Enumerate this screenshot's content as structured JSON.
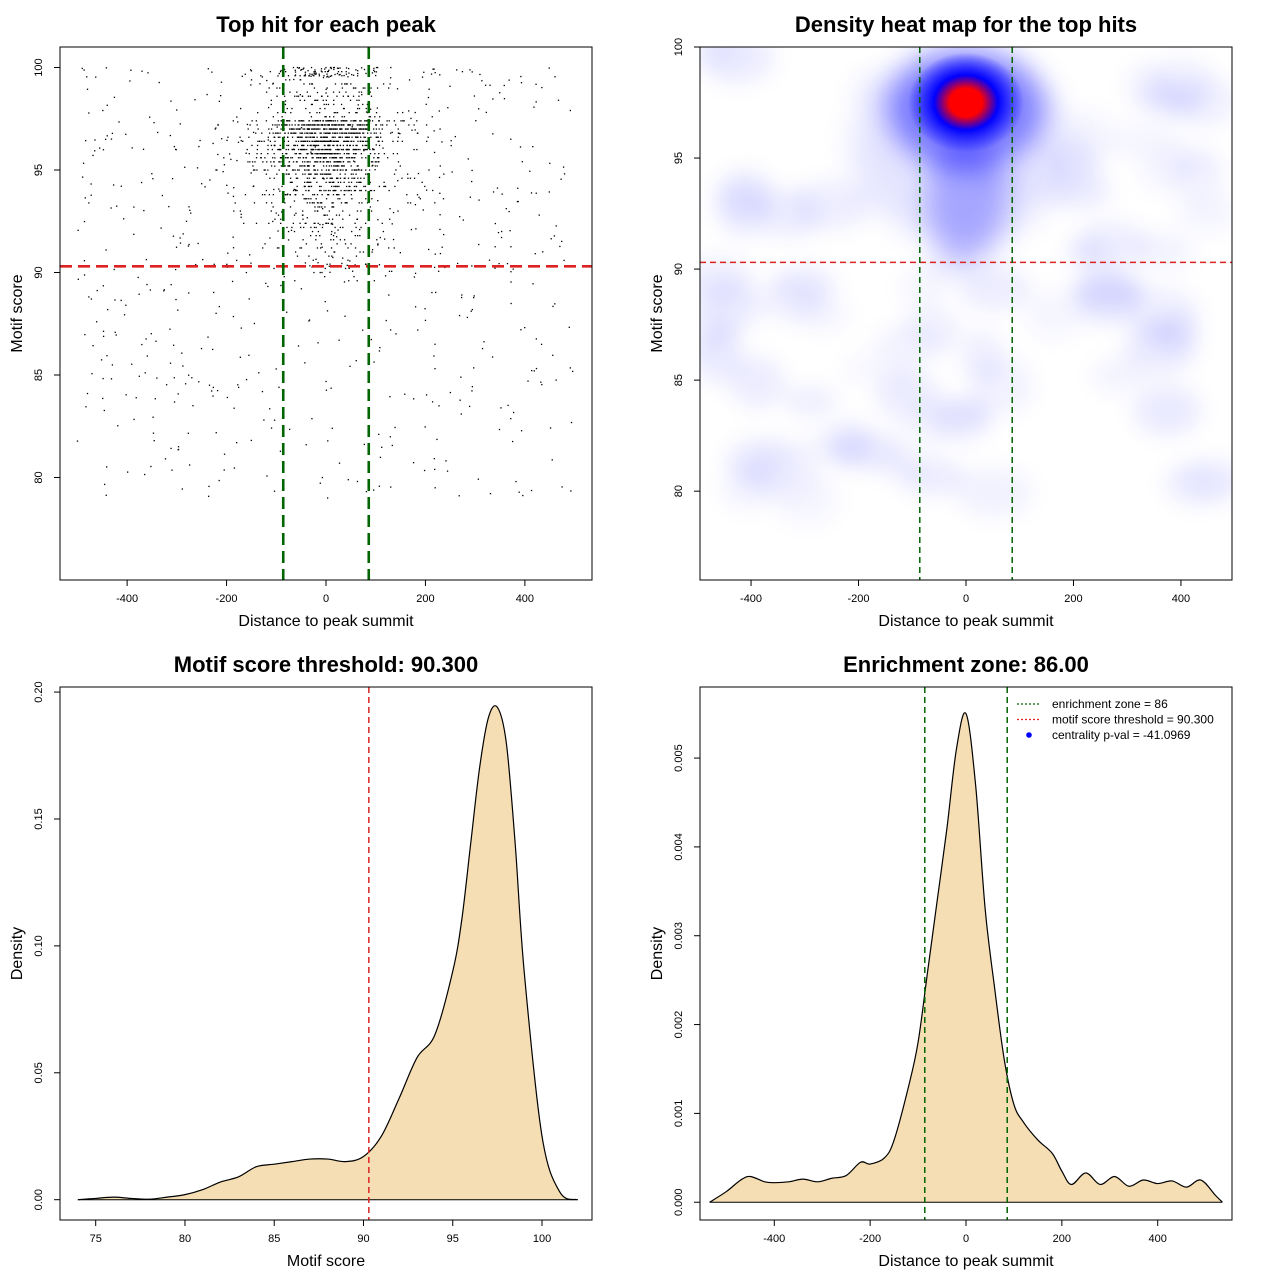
{
  "chart_data": [
    {
      "type": "scatter",
      "title": "Top hit for each peak",
      "xlabel": "Distance to peak summit",
      "ylabel": "Motif score",
      "xlim": [
        -535,
        535
      ],
      "ylim": [
        75.0,
        101.0
      ],
      "xticks": [
        -400,
        -200,
        0,
        200,
        400
      ],
      "yticks": [
        80,
        85,
        90,
        95,
        100
      ],
      "threshold_y": 90.3,
      "zone_x": [
        -86,
        86
      ],
      "colors": {
        "points": "#000000",
        "threshold": "#dd2222",
        "zone": "#006400"
      },
      "point_cloud": {
        "center": {
          "x": 0,
          "y": 97.5
        },
        "core_spread": {
          "x": 55,
          "y": 2.2
        },
        "background_x_range": [
          -500,
          500
        ],
        "background_y_range": [
          79,
          100
        ],
        "approx_points": 2200
      }
    },
    {
      "type": "heatmap",
      "title": "Density heat map for the top hits",
      "xlabel": "Distance to peak summit",
      "ylabel": "Motif score",
      "xlim": [
        -495,
        495
      ],
      "ylim": [
        76.0,
        100.0
      ],
      "xticks": [
        -400,
        -200,
        0,
        200,
        400
      ],
      "yticks": [
        80,
        85,
        90,
        95,
        100
      ],
      "threshold_y": 90.3,
      "zone_x": [
        -86,
        86
      ],
      "colors": {
        "low": "#ffffff",
        "mid": "#0000ff",
        "high": "#ff0000",
        "threshold": "#dd2222",
        "zone": "#006400"
      },
      "hotspot": {
        "x": 0,
        "y": 97.5
      }
    },
    {
      "type": "area",
      "title": "Motif score threshold: 90.300",
      "xlabel": "Motif score",
      "ylabel": "Density",
      "xlim": [
        73.0,
        102.8
      ],
      "ylim": [
        -0.008,
        0.202
      ],
      "xticks": [
        75,
        80,
        85,
        90,
        95,
        100
      ],
      "yticks": [
        0.0,
        0.05,
        0.1,
        0.15,
        0.2
      ],
      "ytick_labels": [
        "0.00",
        "0.05",
        "0.10",
        "0.15",
        "0.20"
      ],
      "threshold_x": 90.3,
      "colors": {
        "fill": "#f5deb3",
        "line": "#000000",
        "threshold": "#dd2222"
      },
      "x": [
        74,
        75,
        76,
        77,
        78,
        79,
        80,
        81,
        82,
        83,
        84,
        85,
        86,
        87,
        88,
        89,
        90,
        91,
        92,
        93,
        94,
        95,
        95.5,
        96,
        96.5,
        97,
        97.5,
        98,
        98.5,
        99,
        100,
        101,
        102
      ],
      "y": [
        0.0,
        0.0005,
        0.001,
        0.0005,
        0.0002,
        0.001,
        0.002,
        0.004,
        0.007,
        0.009,
        0.013,
        0.014,
        0.015,
        0.016,
        0.016,
        0.015,
        0.017,
        0.025,
        0.04,
        0.056,
        0.065,
        0.09,
        0.11,
        0.14,
        0.17,
        0.19,
        0.194,
        0.18,
        0.14,
        0.09,
        0.025,
        0.003,
        0.0
      ]
    },
    {
      "type": "area",
      "title": "Enrichment zone: 86.00",
      "xlabel": "Distance to peak summit",
      "ylabel": "Density",
      "xlim": [
        -555,
        555
      ],
      "ylim": [
        -0.0002,
        0.0058
      ],
      "xticks": [
        -400,
        -200,
        0,
        200,
        400
      ],
      "yticks": [
        0.0,
        0.001,
        0.002,
        0.003,
        0.004,
        0.005
      ],
      "ytick_labels": [
        "0.000",
        "0.001",
        "0.002",
        "0.003",
        "0.004",
        "0.005"
      ],
      "zone_x": [
        -86,
        86
      ],
      "colors": {
        "fill": "#f5deb3",
        "line": "#000000",
        "zone": "#006400"
      },
      "x": [
        -535,
        -500,
        -470,
        -450,
        -420,
        -400,
        -370,
        -340,
        -310,
        -280,
        -250,
        -220,
        -200,
        -170,
        -150,
        -120,
        -100,
        -80,
        -60,
        -40,
        -20,
        0,
        20,
        40,
        60,
        80,
        100,
        120,
        150,
        180,
        200,
        220,
        250,
        280,
        310,
        340,
        370,
        400,
        430,
        460,
        490,
        520,
        535
      ],
      "y": [
        0.0,
        0.00012,
        0.00025,
        0.00029,
        0.00023,
        0.00022,
        0.00023,
        0.00026,
        0.00023,
        0.00027,
        0.0003,
        0.00045,
        0.00043,
        0.0005,
        0.0007,
        0.0013,
        0.0018,
        0.0026,
        0.0034,
        0.0042,
        0.0051,
        0.0055,
        0.0047,
        0.0033,
        0.0024,
        0.0016,
        0.0011,
        0.0009,
        0.0007,
        0.00055,
        0.00035,
        0.0002,
        0.00033,
        0.0002,
        0.00029,
        0.00018,
        0.00025,
        0.00021,
        0.00024,
        0.00017,
        0.00025,
        8e-05,
        0.0
      ],
      "legend": [
        {
          "label": "enrichment zone = 86",
          "style": "dotted-line",
          "color": "#006400"
        },
        {
          "label": "motif score threshold = 90.300",
          "style": "dotted-line",
          "color": "#dd2222"
        },
        {
          "label": "centrality p-val = -41.0969",
          "style": "dot",
          "color": "#0000ff"
        }
      ]
    }
  ]
}
